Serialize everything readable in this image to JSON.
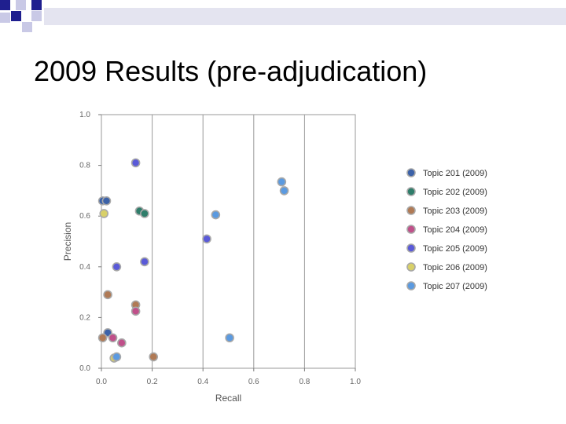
{
  "slide": {
    "title": "2009 Results (pre-adjudication)"
  },
  "colors": {
    "deco_dark": "#1f1f8f",
    "deco_light": "#c9c9e6",
    "deco_bar": "#e4e4f0"
  },
  "chart_data": {
    "type": "scatter",
    "xlabel": "Recall",
    "ylabel": "Precision",
    "xlim": [
      0.0,
      1.0
    ],
    "ylim": [
      0.0,
      1.0
    ],
    "x_ticks": [
      "0.0",
      "0.2",
      "0.4",
      "0.6",
      "0.8",
      "1.0"
    ],
    "y_ticks": [
      "0.0",
      "0.2",
      "0.4",
      "0.6",
      "0.8",
      "1.0"
    ],
    "grid": "vertical",
    "legend_position": "right",
    "series": [
      {
        "name": "Topic 201 (2009)",
        "color": "#3c62a8",
        "points": [
          [
            0.005,
            0.66
          ],
          [
            0.02,
            0.66
          ],
          [
            0.025,
            0.14
          ]
        ]
      },
      {
        "name": "Topic 202 (2009)",
        "color": "#2f7d6a",
        "points": [
          [
            0.15,
            0.62
          ],
          [
            0.17,
            0.61
          ]
        ]
      },
      {
        "name": "Topic 203 (2009)",
        "color": "#b07a55",
        "points": [
          [
            0.025,
            0.29
          ],
          [
            0.135,
            0.25
          ],
          [
            0.205,
            0.045
          ],
          [
            0.005,
            0.12
          ]
        ]
      },
      {
        "name": "Topic 204 (2009)",
        "color": "#c0508a",
        "points": [
          [
            0.135,
            0.225
          ],
          [
            0.045,
            0.12
          ],
          [
            0.08,
            0.1
          ]
        ]
      },
      {
        "name": "Topic 205 (2009)",
        "color": "#5a5ad8",
        "points": [
          [
            0.135,
            0.81
          ],
          [
            0.415,
            0.51
          ],
          [
            0.17,
            0.42
          ],
          [
            0.06,
            0.4
          ]
        ]
      },
      {
        "name": "Topic 206 (2009)",
        "color": "#d8d068",
        "points": [
          [
            0.01,
            0.61
          ],
          [
            0.05,
            0.04
          ]
        ]
      },
      {
        "name": "Topic 207 (2009)",
        "color": "#5b9ae0",
        "points": [
          [
            0.71,
            0.735
          ],
          [
            0.72,
            0.7
          ],
          [
            0.45,
            0.605
          ],
          [
            0.505,
            0.12
          ],
          [
            0.06,
            0.045
          ]
        ]
      }
    ]
  }
}
